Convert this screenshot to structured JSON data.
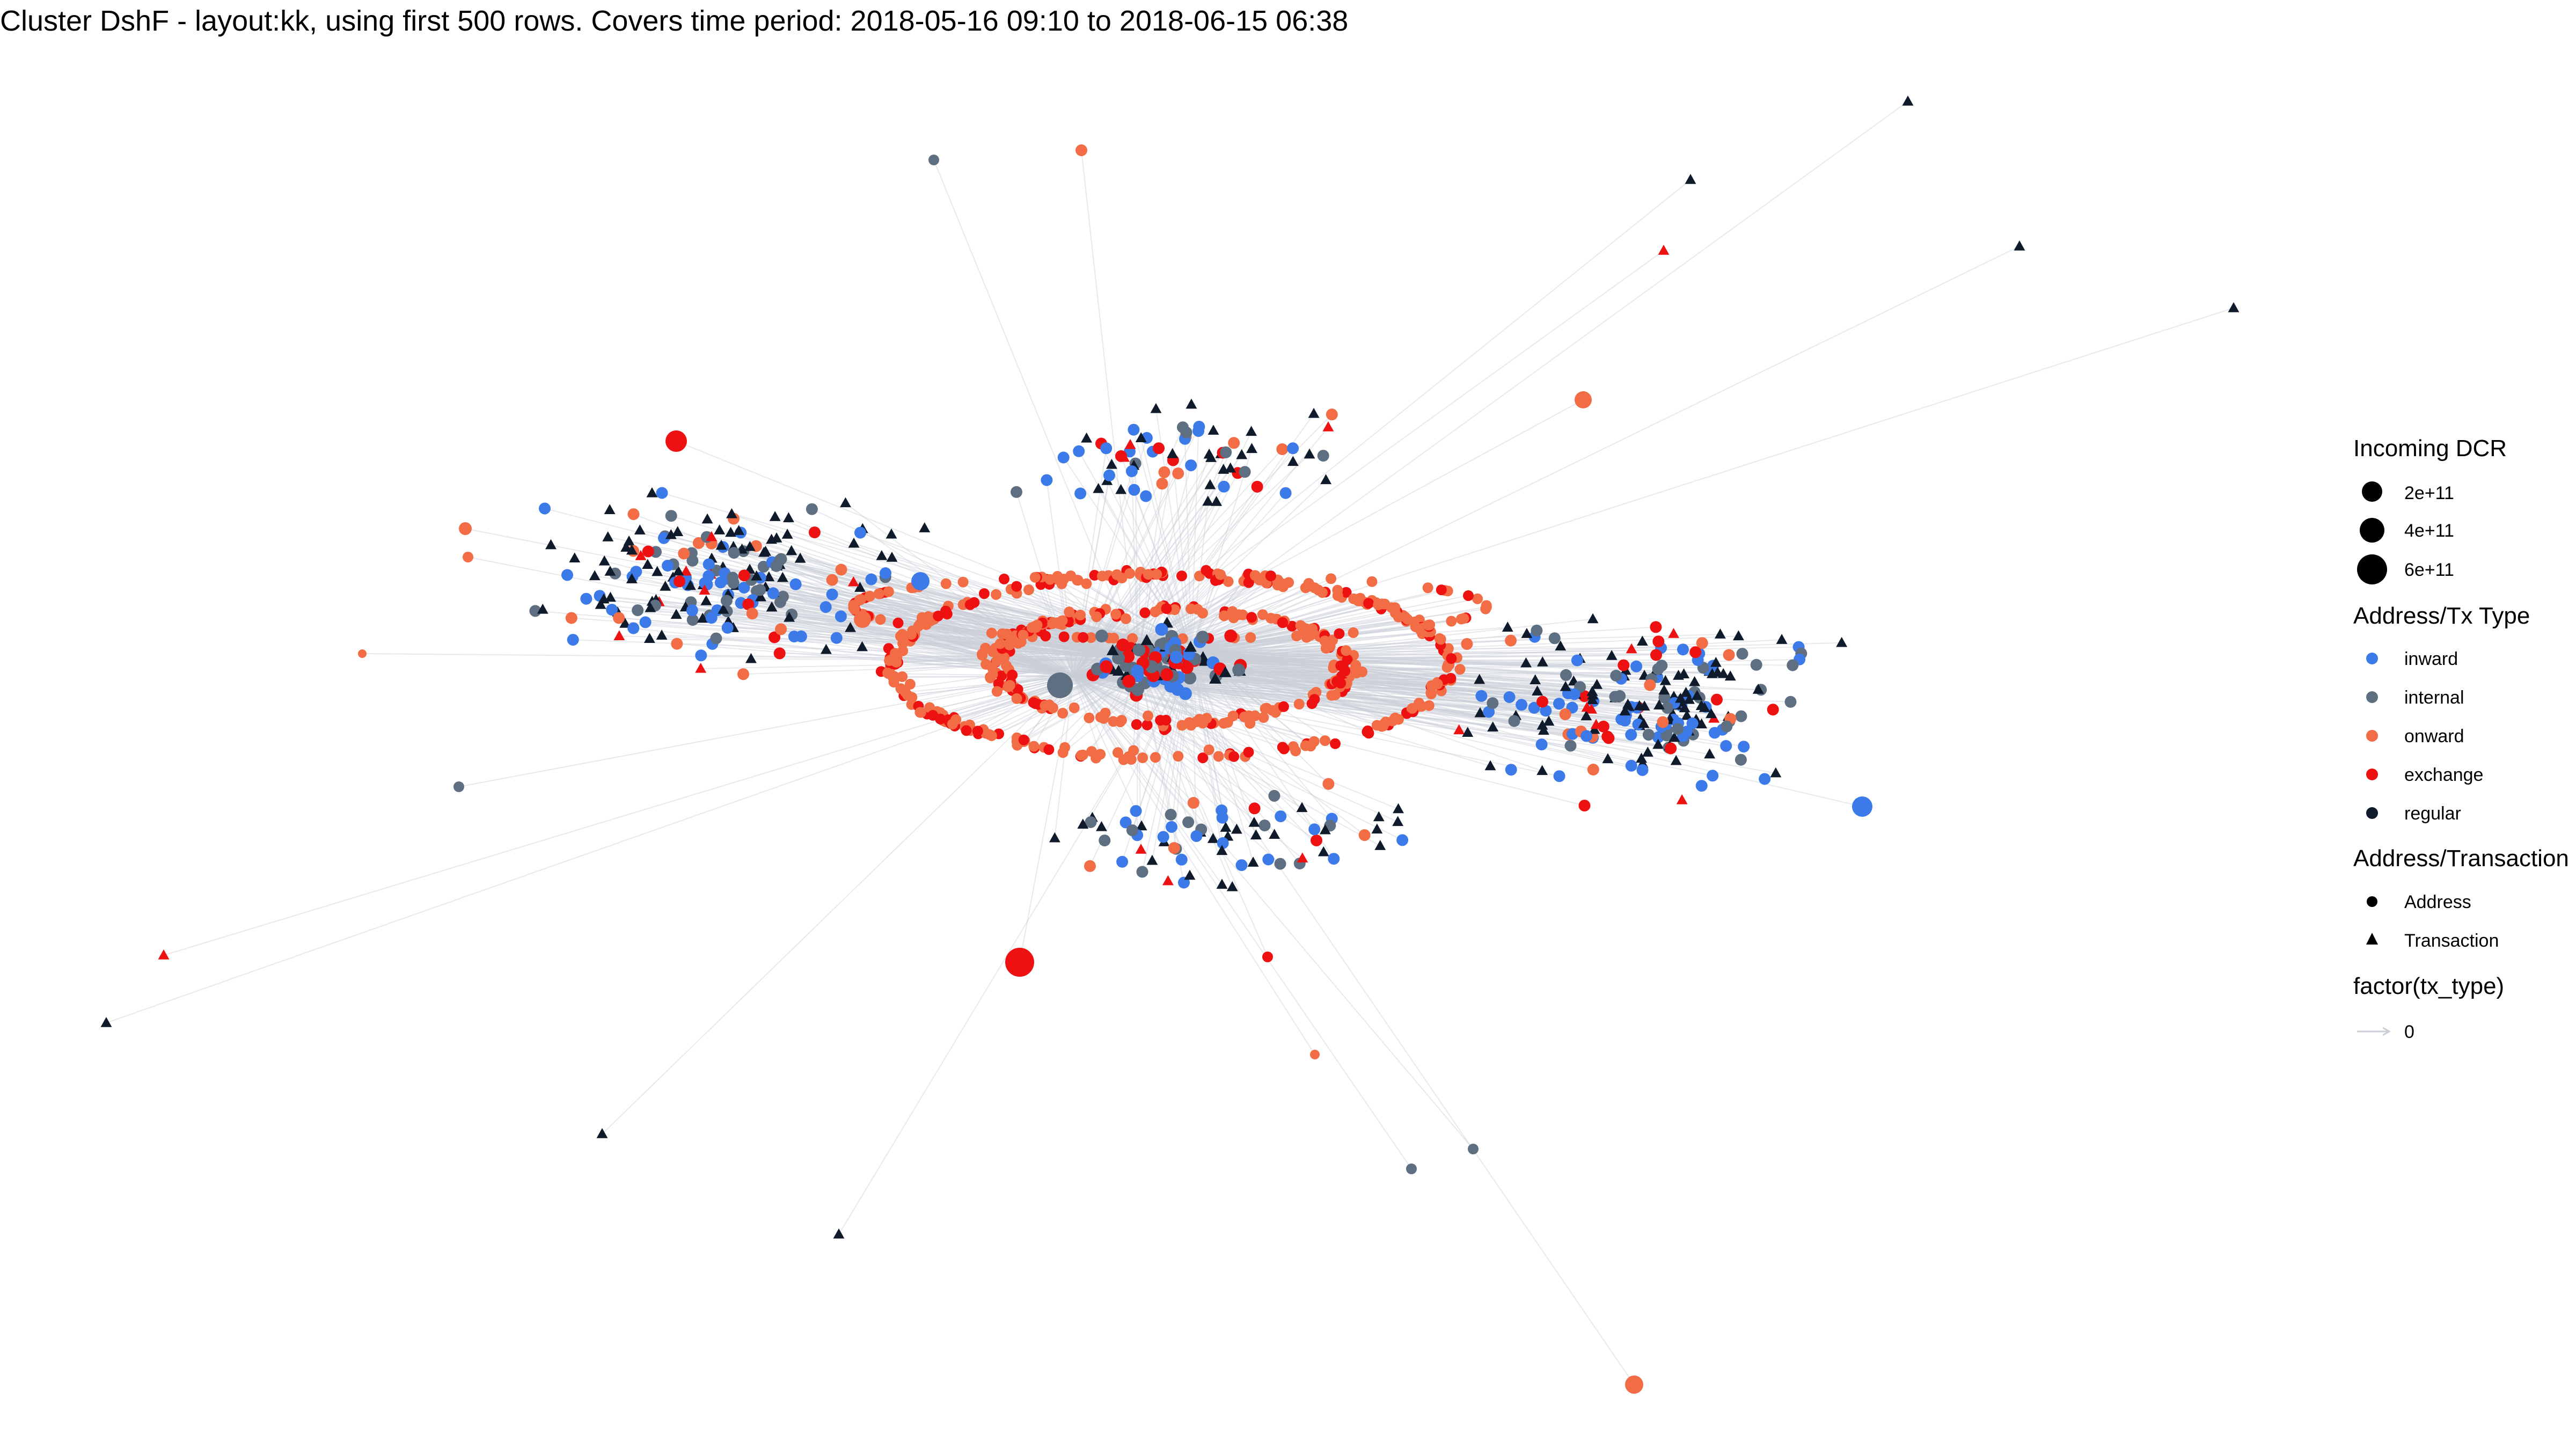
{
  "title": "Cluster DshF - layout:kk, using first 500 rows. Covers time period: 2018-05-16 09:10 to 2018-06-15 06:38",
  "legend": {
    "size": {
      "title": "Incoming DCR",
      "items": [
        "2e+11",
        "4e+11",
        "6e+11"
      ]
    },
    "type": {
      "title": "Address/Tx Type",
      "items": [
        {
          "label": "inward",
          "color": "#3b7ae8"
        },
        {
          "label": "internal",
          "color": "#5f6f82"
        },
        {
          "label": "onward",
          "color": "#f26c45"
        },
        {
          "label": "exchange",
          "color": "#ee1111"
        },
        {
          "label": "regular",
          "color": "#0f1a2b"
        }
      ]
    },
    "shape": {
      "title": "Address/Transaction",
      "items": [
        "Address",
        "Transaction"
      ]
    },
    "edge": {
      "title": "factor(tx_type)",
      "items": [
        "0"
      ]
    }
  },
  "colors": {
    "inward": "#3b7ae8",
    "internal": "#5f6f82",
    "onward": "#f26c45",
    "exchange": "#ee1111",
    "regular": "#0f1a2b",
    "edge": "#c9ced8"
  }
}
